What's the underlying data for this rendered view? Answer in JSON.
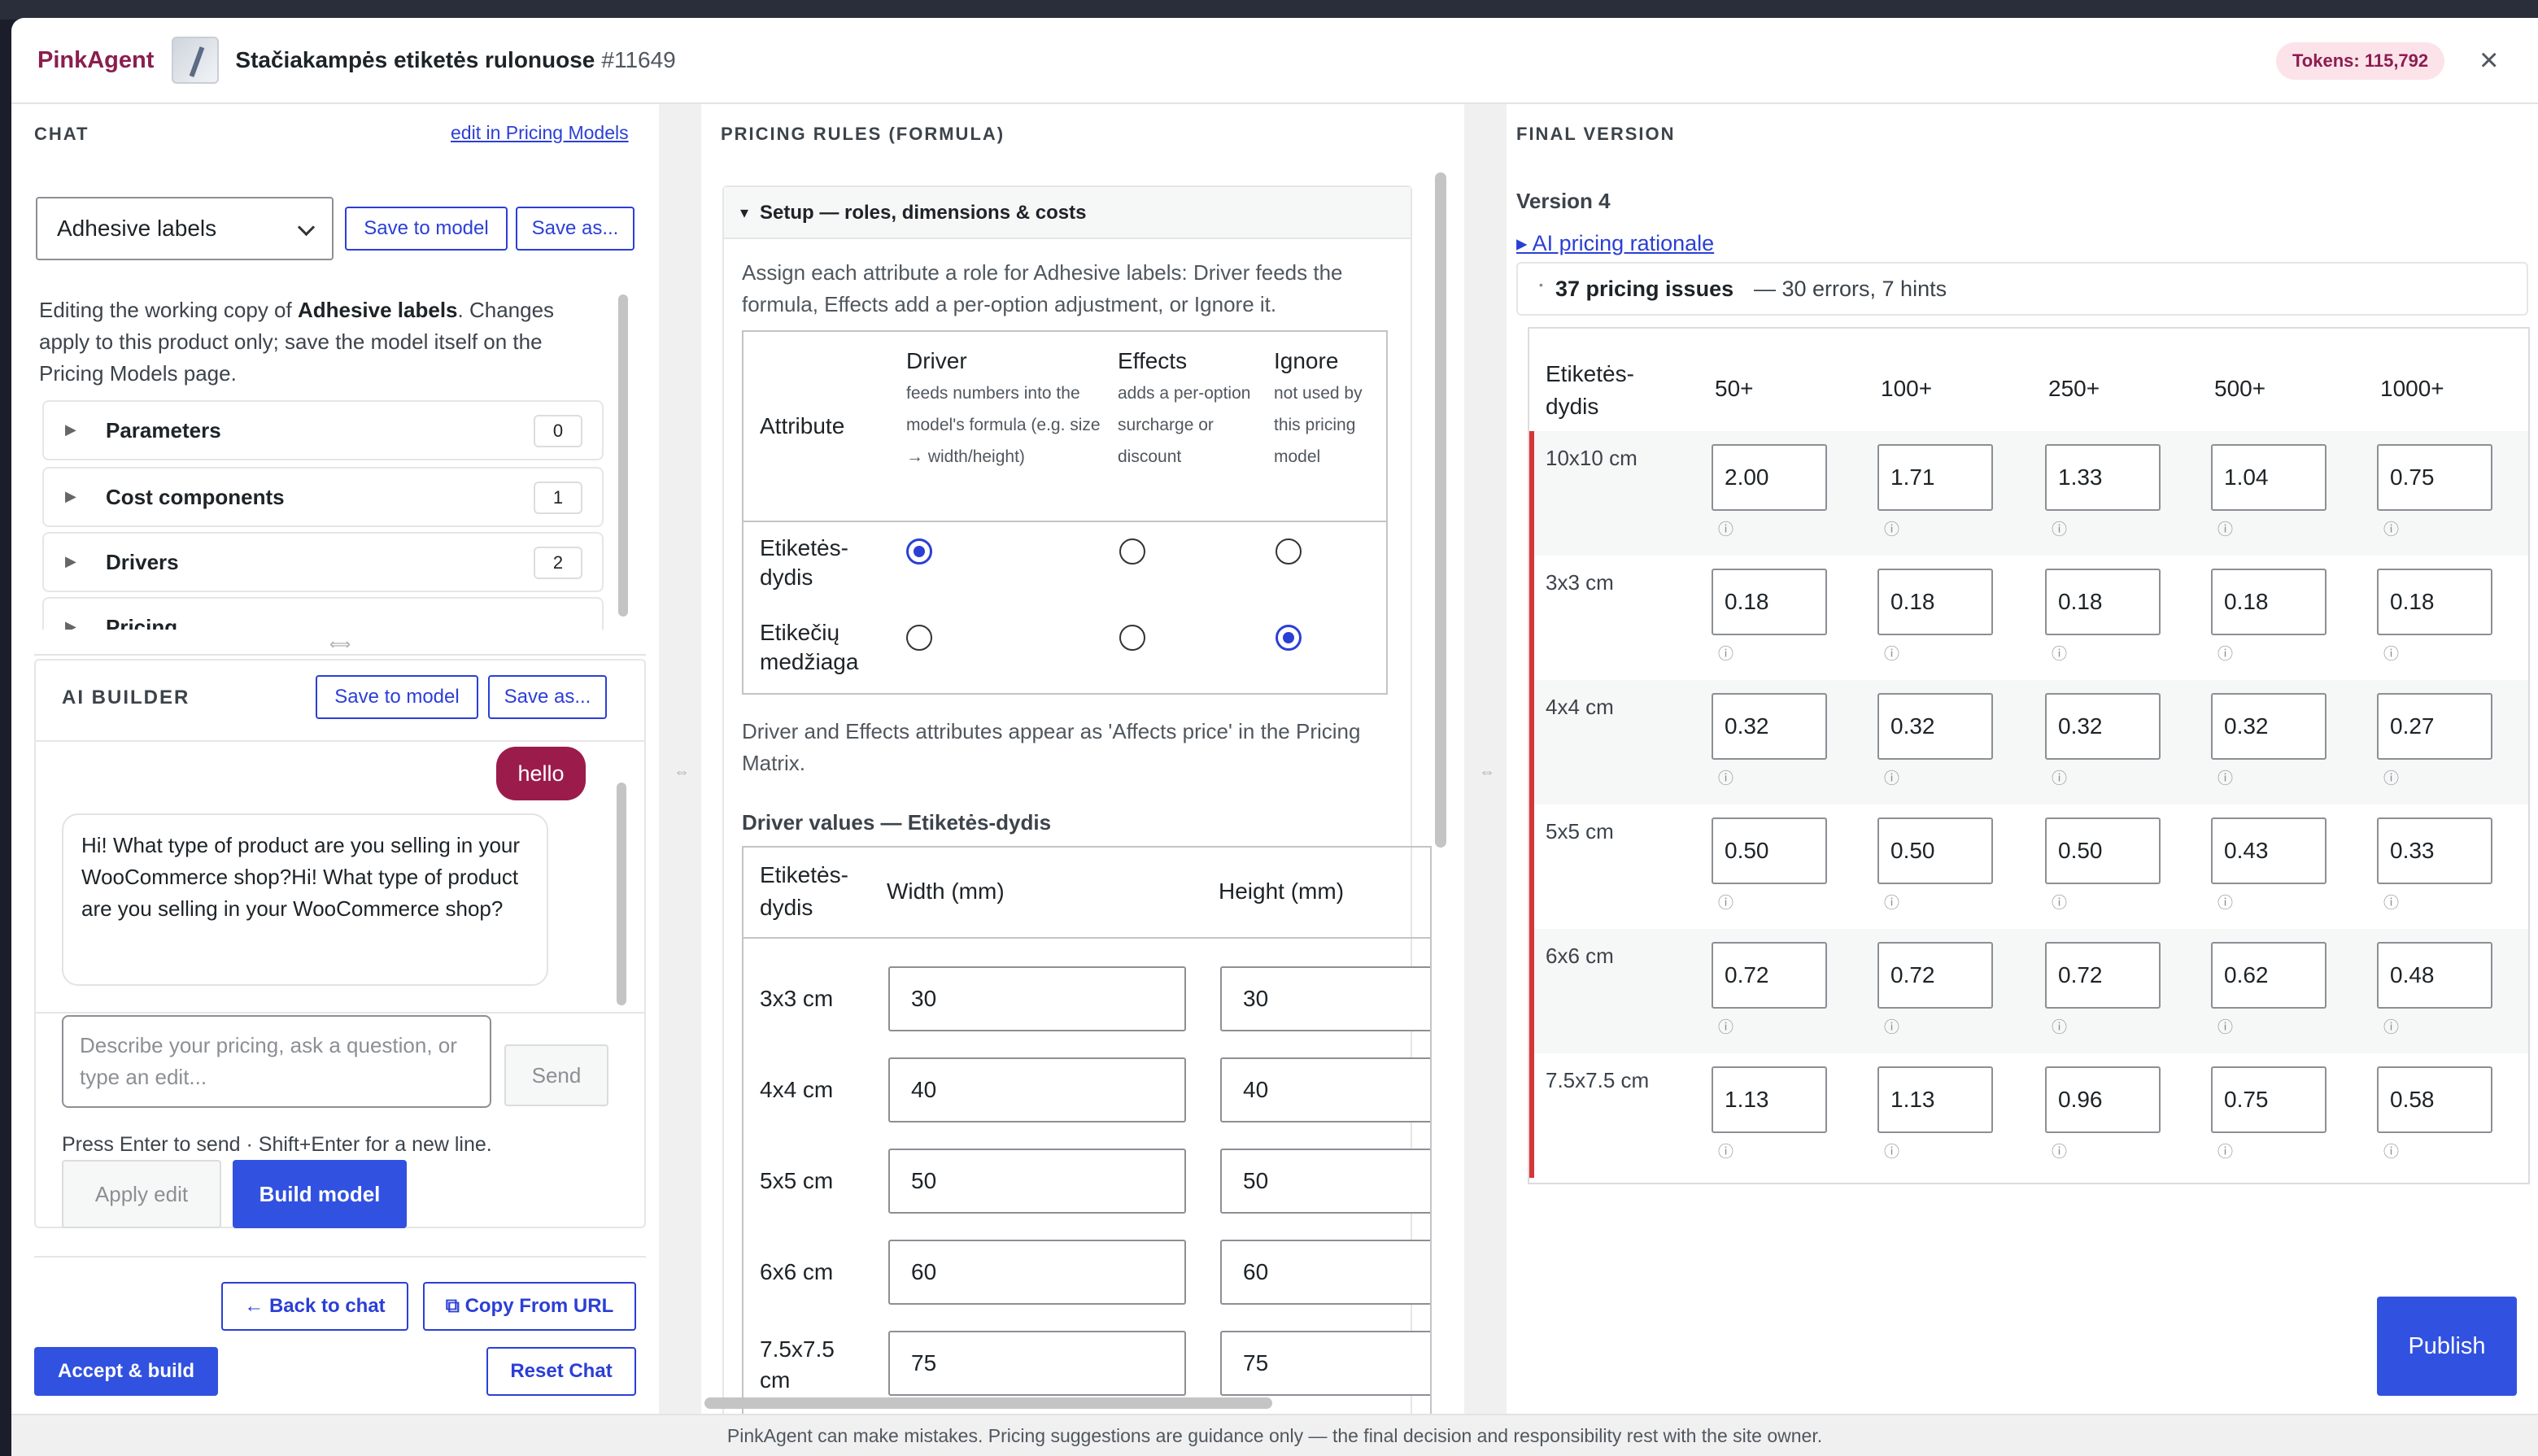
{
  "header": {
    "brand": "PinkAgent",
    "product_title": "Stačiakampės etiketės rulonuose",
    "product_id": "#11649",
    "tokens": "Tokens: 115,792",
    "close": "×"
  },
  "chat": {
    "heading": "CHAT",
    "edit_link": "edit in Pricing Models",
    "model_select": "Adhesive labels",
    "save_to_model": "Save to model",
    "save_as": "Save as...",
    "editing_note_1": "Editing the working copy of ",
    "editing_note_model": "Adhesive labels",
    "editing_note_2": ". Changes apply to this product only; save the model itself on the Pricing Models page.",
    "sections": [
      {
        "label": "Parameters",
        "count": "0"
      },
      {
        "label": "Cost components",
        "count": "1"
      },
      {
        "label": "Drivers",
        "count": "2"
      },
      {
        "label": "Pricing",
        "count": ""
      }
    ],
    "ai_builder": {
      "heading": "AI BUILDER",
      "save_to_model": "Save to model",
      "save_as": "Save as...",
      "user_message": "hello",
      "ai_message": "Hi! What type of product are you selling in your WooCommerce shop?Hi! What type of product are you selling in your WooCommerce shop?",
      "input_placeholder": "Describe your pricing, ask a question, or type an edit...",
      "send": "Send",
      "hint": "Press Enter to send · Shift+Enter for a new line.",
      "apply_edit": "Apply edit",
      "build_model": "Build model"
    },
    "back_to_chat": "← Back to chat",
    "copy_from_url": "⧉ Copy From URL",
    "accept_build": "Accept & build",
    "reset_chat": "Reset Chat"
  },
  "pricing": {
    "heading": "PRICING RULES (FORMULA)",
    "setup_title": "Setup — roles, dimensions & costs",
    "assign_text": "Assign each attribute a role for Adhesive labels: Driver feeds the formula, Effects add a per-option adjustment, or Ignore it.",
    "roles_table": {
      "attr_header": "Attribute",
      "driver": "Driver",
      "driver_desc": "feeds numbers into the model's formula (e.g. size → width/height)",
      "effects": "Effects",
      "effects_desc": "adds a per-option surcharge or discount",
      "ignore": "Ignore",
      "ignore_desc": "not used by this pricing model",
      "rows": [
        {
          "name": "Etiketės-dydis",
          "role": "driver"
        },
        {
          "name": "Etikečių medžiaga",
          "role": "ignore"
        }
      ]
    },
    "affects_note": "Driver and Effects attributes appear as 'Affects price' in the Pricing Matrix.",
    "driver_values_title": "Driver values — Etiketės-dydis",
    "driver_table": {
      "col1": "Etiketės-dydis",
      "col2": "Width (mm)",
      "col3": "Height (mm)",
      "rows": [
        {
          "label": "3x3 cm",
          "w": "30",
          "h": "30"
        },
        {
          "label": "4x4 cm",
          "w": "40",
          "h": "40"
        },
        {
          "label": "5x5 cm",
          "w": "50",
          "h": "50"
        },
        {
          "label": "6x6 cm",
          "w": "60",
          "h": "60"
        },
        {
          "label": "7.5x7.5 cm",
          "w": "75",
          "h": "75"
        }
      ]
    }
  },
  "final": {
    "heading": "FINAL VERSION",
    "version": "Version 4",
    "rationale": "▸ AI pricing rationale",
    "issues_bold": "37 pricing issues",
    "issues_rest": "— 30 errors, 7 hints",
    "matrix": {
      "corner": "Etiketės-dydis",
      "tiers": [
        "50+",
        "100+",
        "250+",
        "500+",
        "1000+"
      ],
      "rows": [
        {
          "label": "10x10 cm",
          "values": [
            "2.00",
            "1.71",
            "1.33",
            "1.04",
            "0.75"
          ]
        },
        {
          "label": "3x3 cm",
          "values": [
            "0.18",
            "0.18",
            "0.18",
            "0.18",
            "0.18"
          ]
        },
        {
          "label": "4x4 cm",
          "values": [
            "0.32",
            "0.32",
            "0.32",
            "0.32",
            "0.27"
          ]
        },
        {
          "label": "5x5 cm",
          "values": [
            "0.50",
            "0.50",
            "0.50",
            "0.43",
            "0.33"
          ]
        },
        {
          "label": "6x6 cm",
          "values": [
            "0.72",
            "0.72",
            "0.72",
            "0.62",
            "0.48"
          ]
        },
        {
          "label": "7.5x7.5 cm",
          "values": [
            "1.13",
            "1.13",
            "0.96",
            "0.75",
            "0.58"
          ]
        }
      ]
    },
    "publish": "Publish"
  },
  "footer": "PinkAgent can make mistakes. Pricing suggestions are guidance only — the final decision and responsibility rest with the site owner.",
  "colors": {
    "brand": "#8b1e4f",
    "accent": "#3151e0",
    "error": "#d63638"
  }
}
